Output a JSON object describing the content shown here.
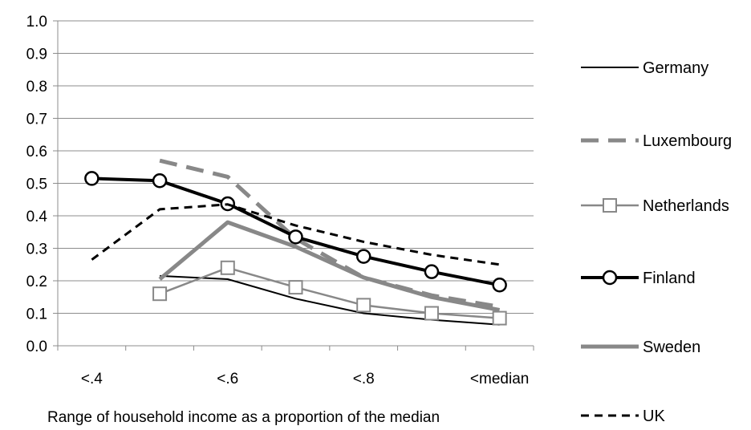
{
  "chart_data": {
    "type": "line",
    "title": "",
    "xlabel": "Range of household  income as a proportion of the median",
    "ylabel": "",
    "ylim": [
      0,
      1
    ],
    "yticks": [
      "0.0",
      "0.1",
      "0.2",
      "0.3",
      "0.4",
      "0.5",
      "0.6",
      "0.7",
      "0.8",
      "0.9",
      "1.0"
    ],
    "x_positions": 7,
    "x_tick_labels": [
      {
        "pos": 0,
        "label": "<.4"
      },
      {
        "pos": 2,
        "label": "<.6"
      },
      {
        "pos": 4,
        "label": "<.8"
      },
      {
        "pos": 6,
        "label": "<median"
      }
    ],
    "grid": "horizontal",
    "legend_position": "right",
    "series": [
      {
        "name": "Germany",
        "color": "#000000",
        "width": 2,
        "dash": "",
        "marker": "none",
        "values": [
          null,
          0.215,
          0.205,
          0.145,
          0.1,
          0.08,
          0.065
        ]
      },
      {
        "name": "Luxembourg",
        "color": "#888888",
        "width": 5,
        "dash": "22,12",
        "marker": "none",
        "values": [
          null,
          0.57,
          0.52,
          0.33,
          0.21,
          0.155,
          0.12
        ]
      },
      {
        "name": "Netherlands",
        "color": "#888888",
        "width": 2.5,
        "dash": "",
        "marker": "square",
        "values": [
          null,
          0.16,
          0.24,
          0.18,
          0.125,
          0.1,
          0.085
        ]
      },
      {
        "name": "Finland",
        "color": "#000000",
        "width": 4,
        "dash": "",
        "marker": "circle",
        "values": [
          0.515,
          0.508,
          0.437,
          0.335,
          0.275,
          0.228,
          0.187
        ]
      },
      {
        "name": "Sweden",
        "color": "#888888",
        "width": 5,
        "dash": "",
        "marker": "none",
        "values": [
          null,
          0.205,
          0.38,
          0.305,
          0.21,
          0.15,
          0.11
        ]
      },
      {
        "name": "UK",
        "color": "#000000",
        "width": 3,
        "dash": "10,7",
        "marker": "none",
        "values": [
          0.265,
          0.42,
          0.435,
          0.37,
          0.32,
          0.28,
          0.25
        ]
      }
    ]
  }
}
